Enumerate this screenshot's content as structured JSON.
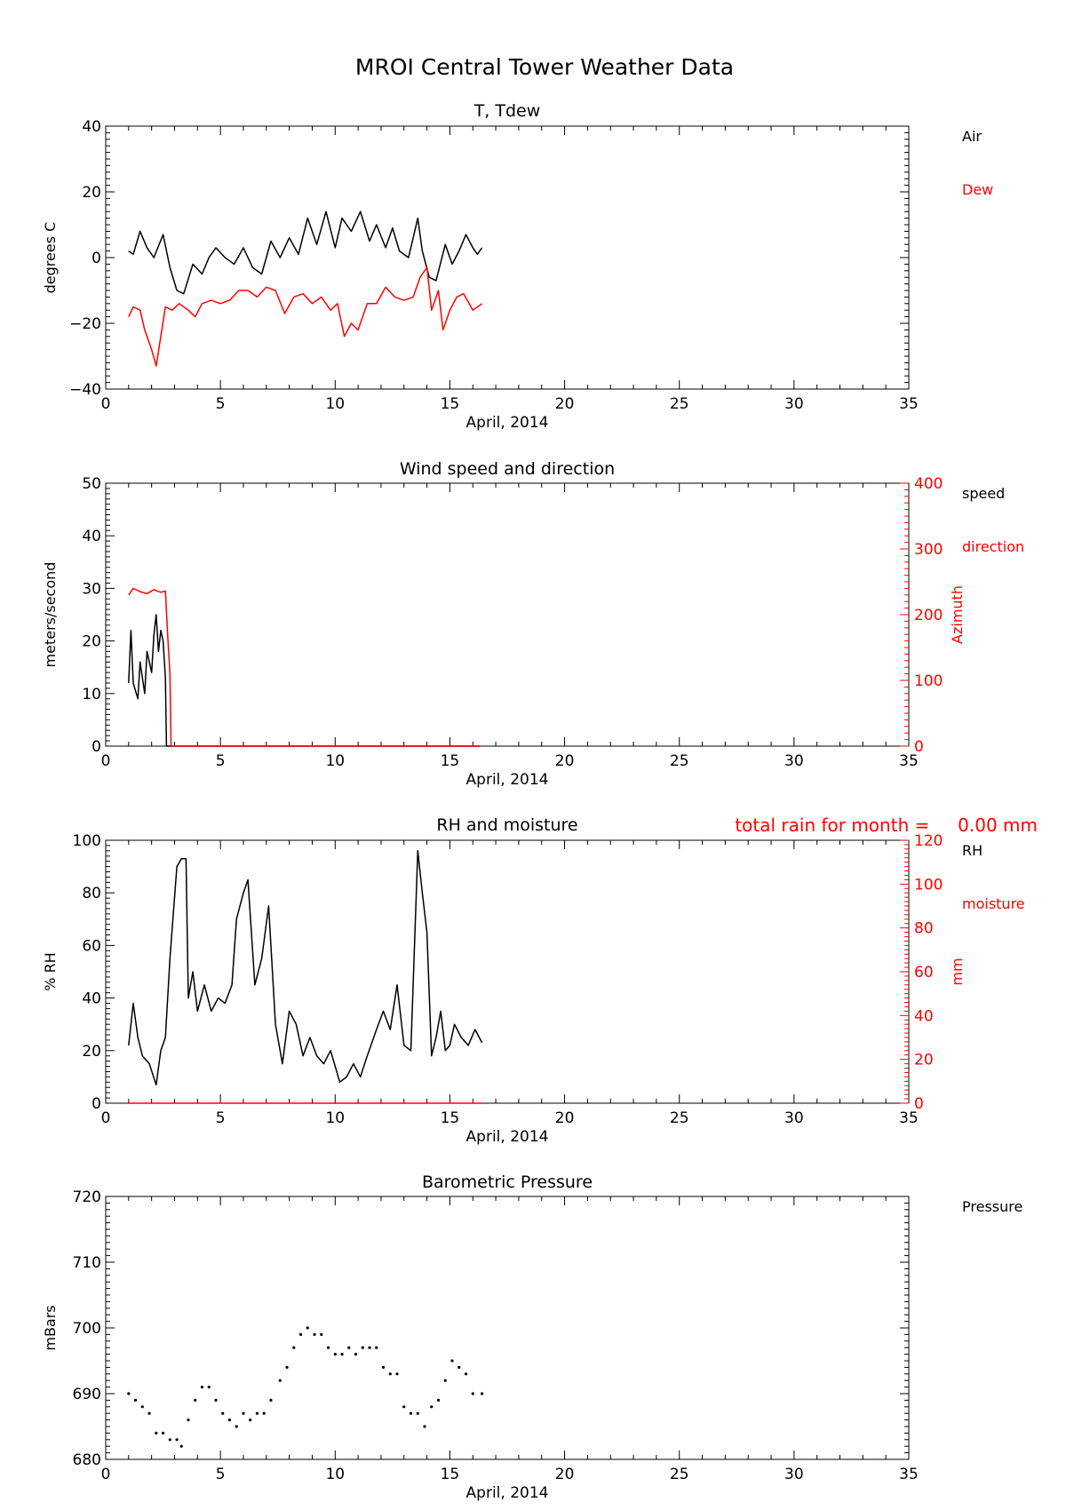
{
  "page_title": "MROI Central Tower Weather Data",
  "colors": {
    "primary": "#000000",
    "secondary": "#ff0000"
  },
  "chart_data": [
    {
      "type": "line",
      "title": "T, Tdew",
      "xlabel": "April, 2014",
      "ylabel": "degrees C",
      "xlim": [
        0,
        35
      ],
      "ylim": [
        -40,
        40
      ],
      "xticks": [
        0,
        5,
        10,
        15,
        20,
        25,
        30,
        35
      ],
      "yticks": [
        -40,
        -20,
        0,
        20,
        40
      ],
      "legend": [
        {
          "label": "Air",
          "color": "#000000"
        },
        {
          "label": "Dew",
          "color": "#ff0000"
        }
      ],
      "series": [
        {
          "name": "Air",
          "color": "#000000",
          "x": [
            1.0,
            1.2,
            1.5,
            1.8,
            2.1,
            2.5,
            2.8,
            3.1,
            3.4,
            3.8,
            4.2,
            4.5,
            4.8,
            5.2,
            5.6,
            6.0,
            6.4,
            6.8,
            7.2,
            7.6,
            8.0,
            8.4,
            8.8,
            9.2,
            9.6,
            10.0,
            10.3,
            10.7,
            11.1,
            11.5,
            11.8,
            12.2,
            12.5,
            12.8,
            13.2,
            13.6,
            13.8,
            14.1,
            14.4,
            14.8,
            15.1,
            15.4,
            15.7,
            16.0,
            16.2,
            16.4
          ],
          "y": [
            2,
            1,
            8,
            3,
            0,
            7,
            -3,
            -10,
            -11,
            -2,
            -5,
            0,
            3,
            0,
            -2,
            3,
            -3,
            -5,
            5,
            0,
            6,
            1,
            12,
            4,
            14,
            3,
            12,
            8,
            14,
            5,
            10,
            3,
            9,
            2,
            0,
            12,
            2,
            -6,
            -7,
            4,
            -2,
            2,
            7,
            3,
            1,
            3
          ]
        },
        {
          "name": "Dew",
          "color": "#ff0000",
          "x": [
            1.0,
            1.2,
            1.5,
            1.7,
            2.0,
            2.2,
            2.4,
            2.6,
            2.9,
            3.2,
            3.6,
            3.9,
            4.2,
            4.6,
            5.0,
            5.4,
            5.8,
            6.2,
            6.6,
            7.0,
            7.4,
            7.8,
            8.2,
            8.6,
            9.0,
            9.4,
            9.8,
            10.1,
            10.4,
            10.7,
            11.0,
            11.4,
            11.8,
            12.2,
            12.6,
            13.0,
            13.4,
            13.7,
            14.0,
            14.2,
            14.5,
            14.7,
            15.0,
            15.3,
            15.6,
            16.0,
            16.4
          ],
          "y": [
            -18,
            -15,
            -16,
            -22,
            -28,
            -33,
            -24,
            -15,
            -16,
            -14,
            -16,
            -18,
            -14,
            -13,
            -14,
            -13,
            -10,
            -10,
            -12,
            -9,
            -10,
            -17,
            -12,
            -11,
            -14,
            -12,
            -16,
            -14,
            -24,
            -20,
            -22,
            -14,
            -14,
            -9,
            -12,
            -13,
            -12,
            -6,
            -3,
            -16,
            -10,
            -22,
            -16,
            -12,
            -11,
            -16,
            -14
          ]
        }
      ]
    },
    {
      "type": "line",
      "title": "Wind speed and direction",
      "xlabel": "April, 2014",
      "ylabel": "meters/second",
      "y2label": "Azimuth",
      "xlim": [
        0,
        35
      ],
      "ylim": [
        0,
        50
      ],
      "y2lim": [
        0,
        400
      ],
      "xticks": [
        0,
        5,
        10,
        15,
        20,
        25,
        30,
        35
      ],
      "yticks": [
        0,
        10,
        20,
        30,
        40,
        50
      ],
      "y2ticks": [
        0,
        100,
        200,
        300,
        400
      ],
      "legend": [
        {
          "label": "speed",
          "color": "#000000"
        },
        {
          "label": "direction",
          "color": "#ff0000"
        }
      ],
      "series": [
        {
          "name": "speed",
          "color": "#000000",
          "axis": "y",
          "x": [
            1.0,
            1.1,
            1.2,
            1.4,
            1.5,
            1.7,
            1.8,
            2.0,
            2.1,
            2.2,
            2.3,
            2.4,
            2.5,
            2.6,
            2.65,
            2.7,
            2.75,
            2.8,
            2.9,
            3.0,
            3.5,
            5.0,
            10.0,
            16.3
          ],
          "y": [
            12,
            22,
            12,
            9,
            16,
            10,
            18,
            14,
            21,
            25,
            18,
            22,
            20,
            13,
            0,
            0,
            0,
            0,
            0,
            0,
            0,
            0,
            0,
            0
          ]
        },
        {
          "name": "direction",
          "color": "#ff0000",
          "axis": "y2",
          "x": [
            1.0,
            1.2,
            1.5,
            1.8,
            2.1,
            2.4,
            2.6,
            2.7,
            2.8,
            2.85,
            3.0,
            5.0,
            10.0,
            16.3
          ],
          "y": [
            230,
            240,
            235,
            232,
            238,
            234,
            236,
            170,
            110,
            0,
            0,
            0,
            0,
            0
          ]
        }
      ]
    },
    {
      "type": "line",
      "title": "RH and moisture",
      "annotation": "total rain for month =     0.00 mm",
      "xlabel": "April, 2014",
      "ylabel": "% RH",
      "y2label": "mm",
      "xlim": [
        0,
        35
      ],
      "ylim": [
        0,
        100
      ],
      "y2lim": [
        0,
        120
      ],
      "xticks": [
        0,
        5,
        10,
        15,
        20,
        25,
        30,
        35
      ],
      "yticks": [
        0,
        20,
        40,
        60,
        80,
        100
      ],
      "y2ticks": [
        0,
        20,
        40,
        60,
        80,
        100,
        120
      ],
      "legend": [
        {
          "label": "RH",
          "color": "#000000"
        },
        {
          "label": "moisture",
          "color": "#ff0000"
        }
      ],
      "series": [
        {
          "name": "RH",
          "color": "#000000",
          "axis": "y",
          "x": [
            1.0,
            1.2,
            1.4,
            1.6,
            1.9,
            2.2,
            2.4,
            2.6,
            2.8,
            3.1,
            3.3,
            3.5,
            3.6,
            3.8,
            4.0,
            4.3,
            4.6,
            4.9,
            5.2,
            5.5,
            5.7,
            6.0,
            6.2,
            6.5,
            6.8,
            7.1,
            7.4,
            7.7,
            8.0,
            8.3,
            8.6,
            8.9,
            9.2,
            9.5,
            9.8,
            10.2,
            10.5,
            10.8,
            11.1,
            11.4,
            11.8,
            12.1,
            12.4,
            12.7,
            13.0,
            13.3,
            13.6,
            13.8,
            14.0,
            14.2,
            14.4,
            14.6,
            14.8,
            15.0,
            15.2,
            15.5,
            15.8,
            16.1,
            16.4
          ],
          "y": [
            22,
            38,
            25,
            18,
            15,
            7,
            20,
            25,
            55,
            90,
            93,
            93,
            40,
            50,
            35,
            45,
            35,
            40,
            38,
            45,
            70,
            80,
            85,
            45,
            55,
            75,
            30,
            15,
            35,
            30,
            18,
            25,
            18,
            15,
            20,
            8,
            10,
            15,
            10,
            18,
            28,
            35,
            28,
            45,
            22,
            20,
            96,
            80,
            65,
            18,
            25,
            35,
            20,
            22,
            30,
            25,
            22,
            28,
            23
          ]
        },
        {
          "name": "moisture",
          "color": "#ff0000",
          "axis": "y2",
          "x": [
            1.0,
            16.4
          ],
          "y": [
            0,
            0
          ]
        }
      ]
    },
    {
      "type": "scatter",
      "title": "Barometric Pressure",
      "xlabel": "April, 2014",
      "ylabel": "mBars",
      "xlim": [
        0,
        35
      ],
      "ylim": [
        680,
        720
      ],
      "xticks": [
        0,
        5,
        10,
        15,
        20,
        25,
        30,
        35
      ],
      "yticks": [
        680,
        690,
        700,
        710,
        720
      ],
      "legend": [
        {
          "label": "Pressure",
          "color": "#000000"
        }
      ],
      "series": [
        {
          "name": "Pressure",
          "color": "#000000",
          "x": [
            1.0,
            1.3,
            1.6,
            1.9,
            2.2,
            2.5,
            2.8,
            3.1,
            3.3,
            3.6,
            3.9,
            4.2,
            4.5,
            4.8,
            5.1,
            5.4,
            5.7,
            6.0,
            6.3,
            6.6,
            6.9,
            7.2,
            7.6,
            7.9,
            8.2,
            8.5,
            8.8,
            9.1,
            9.4,
            9.7,
            10.0,
            10.3,
            10.6,
            10.9,
            11.2,
            11.5,
            11.8,
            12.1,
            12.4,
            12.7,
            13.0,
            13.3,
            13.6,
            13.9,
            14.2,
            14.5,
            14.8,
            15.1,
            15.4,
            15.7,
            16.0,
            16.4
          ],
          "y": [
            690,
            689,
            688,
            687,
            684,
            684,
            683,
            683,
            682,
            686,
            689,
            691,
            691,
            689,
            687,
            686,
            685,
            687,
            686,
            687,
            687,
            689,
            692,
            694,
            697,
            699,
            700,
            699,
            699,
            697,
            696,
            696,
            697,
            696,
            697,
            697,
            697,
            694,
            693,
            693,
            688,
            687,
            687,
            685,
            688,
            689,
            692,
            695,
            694,
            693,
            690,
            690
          ]
        }
      ]
    }
  ]
}
